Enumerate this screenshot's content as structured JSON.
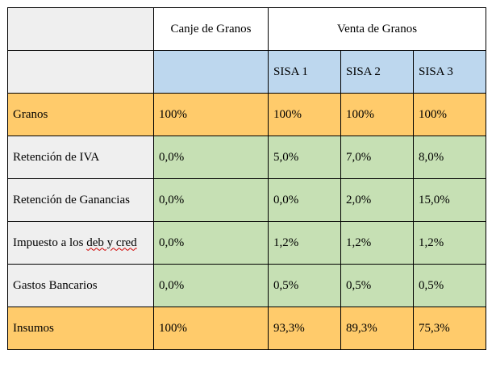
{
  "header": {
    "col_canje": "Canje de Granos",
    "col_venta": "Venta de Granos",
    "sub_sisa1": "SISA 1",
    "sub_sisa2": "SISA 2",
    "sub_sisa3": "SISA 3"
  },
  "rows": [
    {
      "label": "Granos",
      "canje": "100%",
      "sisa1": "100%",
      "sisa2": "100%",
      "sisa3": "100%"
    },
    {
      "label": "Retención de IVA",
      "canje": "0,0%",
      "sisa1": "5,0%",
      "sisa2": "7,0%",
      "sisa3": "8,0%"
    },
    {
      "label": "Retención de Ganancias",
      "canje": "0,0%",
      "sisa1": "0,0%",
      "sisa2": "2,0%",
      "sisa3": "15,0%"
    },
    {
      "label_main": "Impuesto a los ",
      "label_flagged": "deb y cred",
      "canje": "0,0%",
      "sisa1": "1,2%",
      "sisa2": "1,2%",
      "sisa3": "1,2%"
    },
    {
      "label": "Gastos Bancarios",
      "canje": "0,0%",
      "sisa1": "0,5%",
      "sisa2": "0,5%",
      "sisa3": "0,5%"
    },
    {
      "label": "Insumos",
      "canje": "100%",
      "sisa1": "93,3%",
      "sisa2": "89,3%",
      "sisa3": "75,3%"
    }
  ],
  "colors": {
    "header_grey": "#efefef",
    "subheader_blue": "#bdd7ee",
    "highlight_orange": "#ffcb6b",
    "value_green": "#c6e0b4",
    "spellcheck_red": "#d00000"
  }
}
